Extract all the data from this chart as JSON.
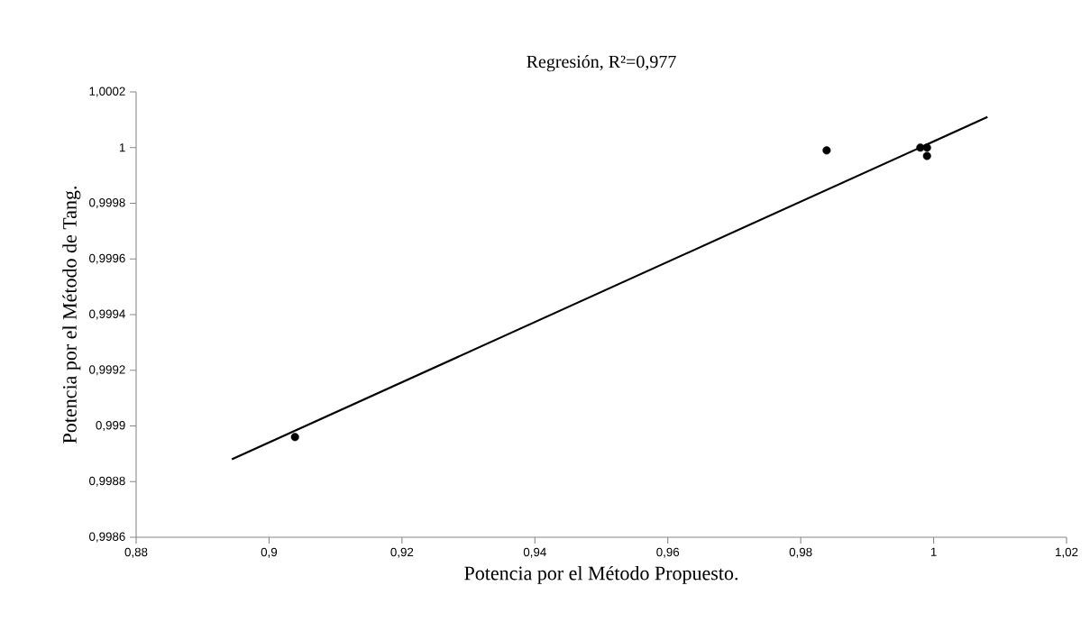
{
  "chart_data": {
    "type": "scatter",
    "title": "Regresión,  R²=0,977",
    "xlabel": "Potencia por el Método Propuesto.",
    "ylabel": "Potencia por el Método de Tang.",
    "xlim": [
      0.88,
      1.02
    ],
    "ylim": [
      0.9986,
      1.0002
    ],
    "xticks": [
      {
        "value": 0.88,
        "label": "0,88"
      },
      {
        "value": 0.9,
        "label": "0,9"
      },
      {
        "value": 0.92,
        "label": "0,92"
      },
      {
        "value": 0.94,
        "label": "0,94"
      },
      {
        "value": 0.96,
        "label": "0,96"
      },
      {
        "value": 0.98,
        "label": "0,98"
      },
      {
        "value": 1,
        "label": "1"
      },
      {
        "value": 1.02,
        "label": "1,02"
      }
    ],
    "yticks": [
      {
        "value": 0.9986,
        "label": "0,9986"
      },
      {
        "value": 0.9988,
        "label": "0,9988"
      },
      {
        "value": 0.999,
        "label": "0,999"
      },
      {
        "value": 0.9992,
        "label": "0,9992"
      },
      {
        "value": 0.9994,
        "label": "0,9994"
      },
      {
        "value": 0.9996,
        "label": "0,9996"
      },
      {
        "value": 0.9998,
        "label": "0,9998"
      },
      {
        "value": 1,
        "label": "1"
      },
      {
        "value": 1.0002,
        "label": "1,0002"
      }
    ],
    "grid": false,
    "series": [
      {
        "marker": "circle",
        "color": "#000000",
        "x": [
          0.9039,
          0.9839,
          0.998,
          0.999,
          0.999
        ],
        "values": [
          0.99896,
          0.99999,
          1.0,
          1.0,
          0.99997
        ]
      },
      {
        "type": "line",
        "marker": "none",
        "line_style": "solid",
        "color": "#000000",
        "x": [
          0.8944,
          1.0081
        ],
        "values": [
          0.99888,
          1.00011
        ]
      }
    ]
  }
}
